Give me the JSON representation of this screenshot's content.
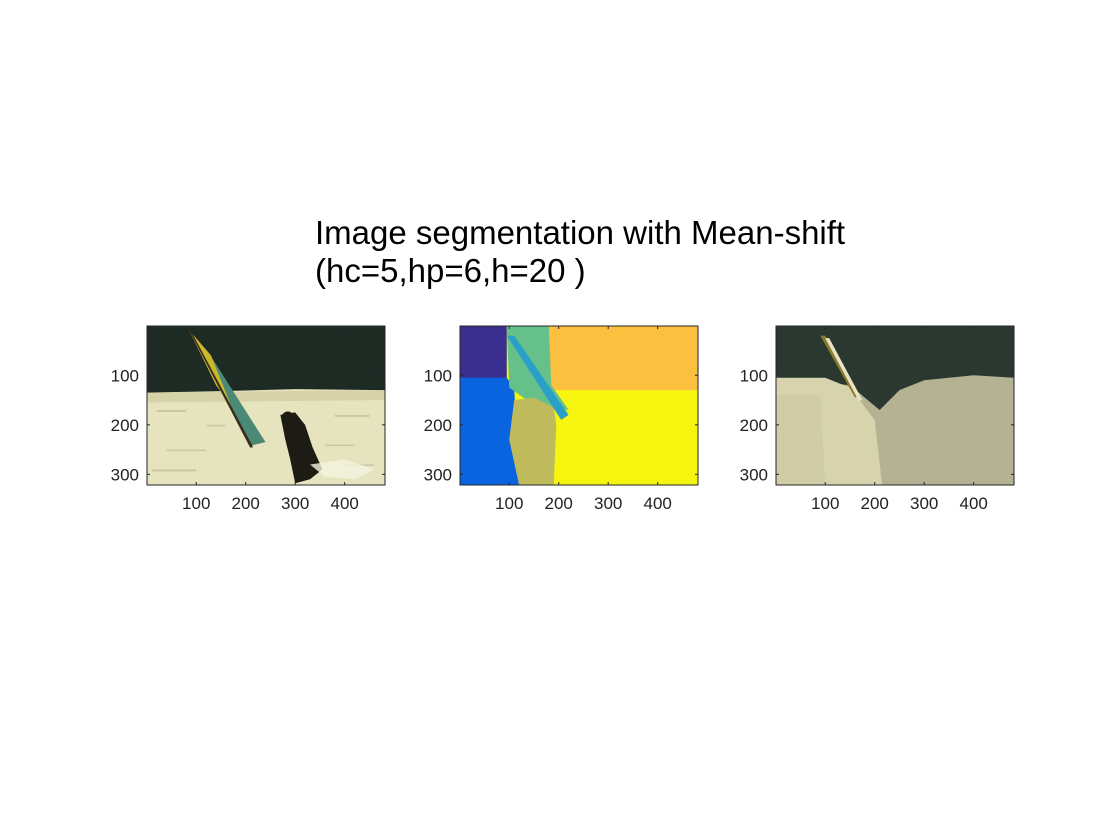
{
  "title_lines": [
    "Image segmentation with Mean-shift",
    "(hc=5,hp=6,h=20 )"
  ],
  "chart_data": [
    {
      "type": "image",
      "xlim": [
        0.5,
        481.5
      ],
      "ylim": [
        0.5,
        321.5
      ],
      "ydir": "reverse",
      "xticks": [
        100,
        200,
        300,
        400
      ],
      "yticks": [
        100,
        200,
        300
      ]
    },
    {
      "type": "image",
      "xlim": [
        0.5,
        481.5
      ],
      "ylim": [
        0.5,
        321.5
      ],
      "ydir": "reverse",
      "xticks": [
        100,
        200,
        300,
        400
      ],
      "yticks": [
        100,
        200,
        300
      ]
    },
    {
      "type": "image",
      "xlim": [
        0.5,
        481.5
      ],
      "ylim": [
        0.5,
        321.5
      ],
      "ydir": "reverse",
      "xticks": [
        100,
        200,
        300,
        400
      ],
      "yticks": [
        100,
        200,
        300
      ]
    }
  ]
}
